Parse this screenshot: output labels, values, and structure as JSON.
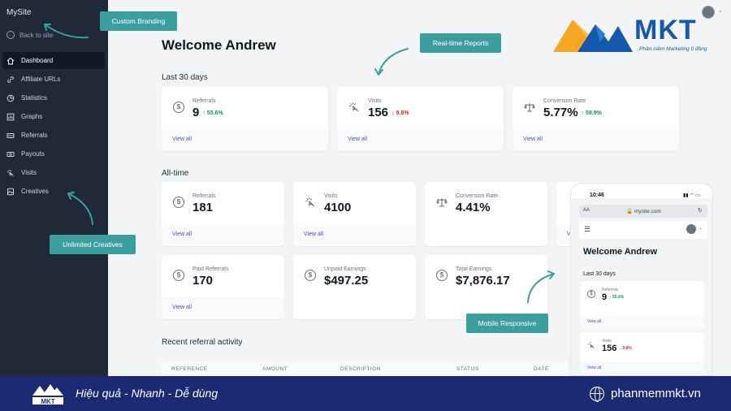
{
  "sidebar": {
    "brand": "MySite",
    "back_label": "Back to site",
    "items": [
      {
        "label": "Dashboard",
        "icon": "home-icon",
        "active": true
      },
      {
        "label": "Affiliate URLs",
        "icon": "link-icon"
      },
      {
        "label": "Statistics",
        "icon": "pie-chart-icon"
      },
      {
        "label": "Graphs",
        "icon": "chart-icon"
      },
      {
        "label": "Referrals",
        "icon": "ticket-icon"
      },
      {
        "label": "Payouts",
        "icon": "cash-icon"
      },
      {
        "label": "Visits",
        "icon": "cursor-click-icon"
      },
      {
        "label": "Creatives",
        "icon": "image-icon"
      }
    ]
  },
  "main": {
    "welcome": "Welcome Andrew",
    "last30": {
      "title": "Last 30 days",
      "cards": [
        {
          "label": "Referrals",
          "value": "9",
          "change": "55.6%",
          "direction": "up",
          "link": "View all",
          "icon": "dollar-icon"
        },
        {
          "label": "Visits",
          "value": "156",
          "change": "9.8%",
          "direction": "down",
          "link": "View all",
          "icon": "cursor-click-icon"
        },
        {
          "label": "Conversion Rate",
          "value": "5.77%",
          "change": "59.9%",
          "direction": "up",
          "link": "View all",
          "icon": "scale-icon"
        }
      ]
    },
    "alltime": {
      "title": "All-time",
      "cards": [
        {
          "label": "Referrals",
          "value": "181",
          "link": "View all",
          "icon": "dollar-icon"
        },
        {
          "label": "Visits",
          "value": "4100",
          "link": "View all",
          "icon": "cursor-click-icon"
        },
        {
          "label": "Conversion Rate",
          "value": "4.41%",
          "icon": "scale-icon"
        },
        {
          "label": "Paid Referrals",
          "value": "170",
          "link": "View all",
          "icon": "dollar-icon"
        },
        {
          "label": "Unpaid Earnings",
          "value": "$497.25",
          "icon": "dollar-icon"
        },
        {
          "label": "Total Earnings",
          "value": "$7,876.17",
          "icon": "dollar-icon"
        }
      ],
      "partial_link": "V"
    },
    "recent": {
      "title": "Recent referral activity",
      "columns": [
        "REFERENCE",
        "AMOUNT",
        "DESCRIPTION",
        "STATUS",
        "DATE"
      ]
    }
  },
  "callouts": {
    "custom_branding": "Custom Branding",
    "realtime_reports": "Real-time Reports",
    "unlimited_creatives": "Unlimited Creatives",
    "mobile_responsive": "Mobile Responsive"
  },
  "logo": {
    "text": "MKT",
    "subtitle": "Phần mềm Marketing 0 đồng"
  },
  "phone": {
    "time": "10:46",
    "aa": "AA",
    "url": "mysite.com",
    "welcome": "Welcome Andrew",
    "section": "Last 30 days",
    "cards": [
      {
        "label": "Referrals",
        "value": "9",
        "change": "55.6%",
        "direction": "up",
        "link": "View all"
      },
      {
        "label": "Visits",
        "value": "156",
        "change": "9.8%",
        "direction": "down",
        "link": "View all"
      }
    ]
  },
  "banner": {
    "tagline": "Hiệu quả - Nhanh - Dễ dùng",
    "website": "phanmemmkt.vn"
  },
  "colors": {
    "sidebar": "#1f2937",
    "callout": "#3d9ea0",
    "banner": "#1b2a72",
    "positive": "#059669",
    "negative": "#dc2626",
    "link": "#4f46e5"
  }
}
